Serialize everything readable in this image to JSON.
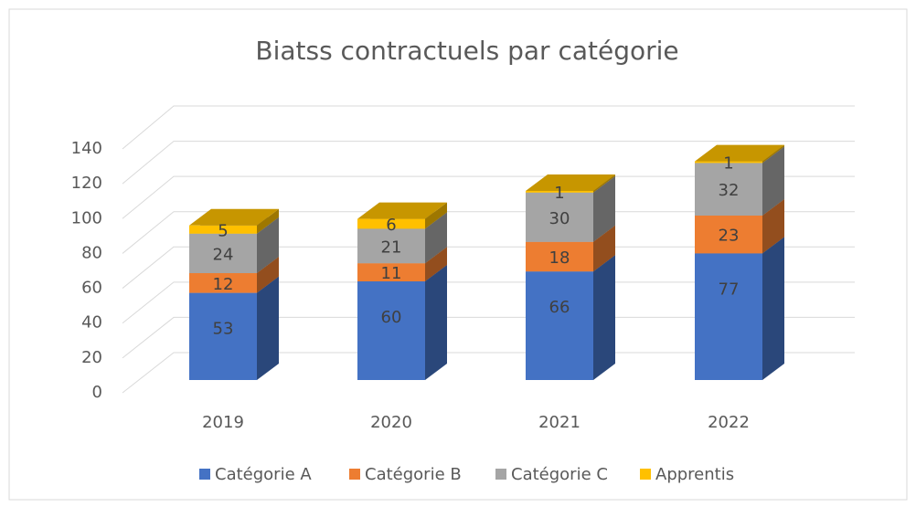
{
  "chart_data": {
    "type": "bar3d_stacked",
    "title": "Biatss contractuels par catégorie",
    "categories": [
      "2019",
      "2020",
      "2021",
      "2022"
    ],
    "series": [
      {
        "name": "Catégorie A",
        "color": "#4472c4",
        "values": [
          53,
          60,
          66,
          77
        ]
      },
      {
        "name": "Catégorie B",
        "color": "#ed7d31",
        "values": [
          12,
          11,
          18,
          23
        ]
      },
      {
        "name": "Catégorie C",
        "color": "#a5a5a5",
        "values": [
          24,
          21,
          30,
          32
        ]
      },
      {
        "name": "Apprentis",
        "color": "#ffc000",
        "values": [
          5,
          6,
          1,
          1
        ]
      }
    ],
    "ylim": [
      0,
      140
    ],
    "yticks": [
      0,
      20,
      40,
      60,
      80,
      100,
      120,
      140
    ],
    "grid": true,
    "legend": "bottom"
  }
}
